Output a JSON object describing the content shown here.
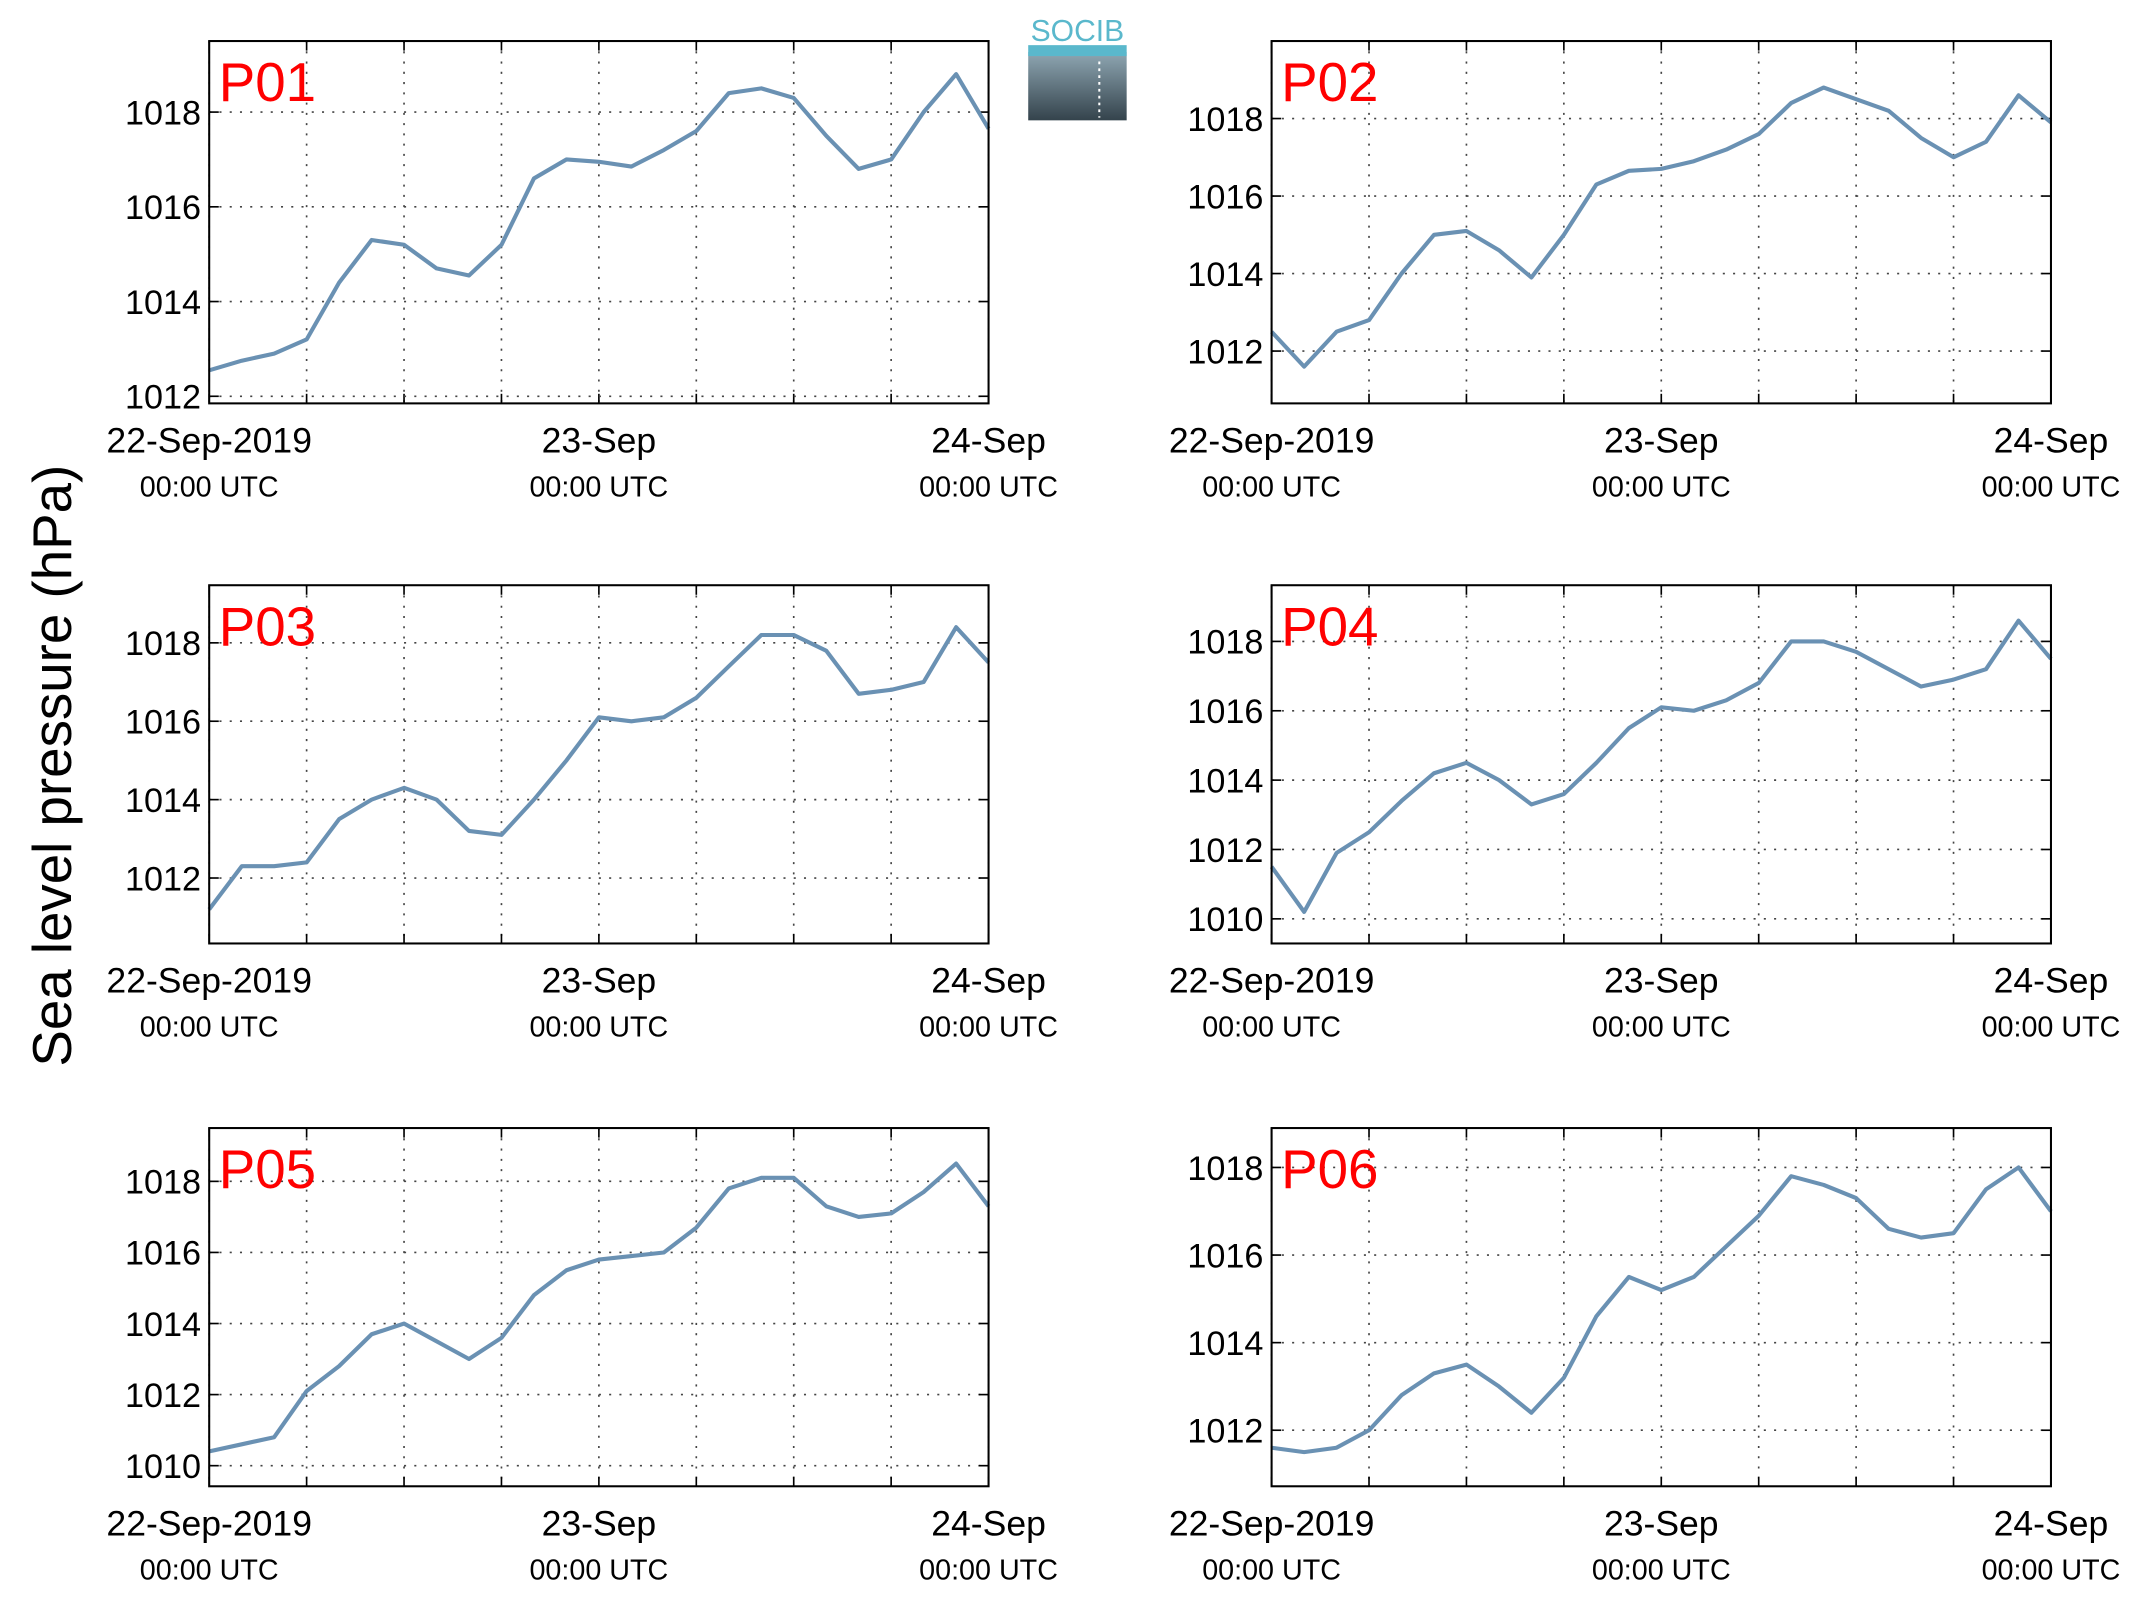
{
  "figure": {
    "ylabel": "Sea level pressure (hPa)",
    "logo": "SOCIB"
  },
  "chart_data": [
    {
      "type": "line",
      "title": "P01",
      "color": "#6a91b3",
      "grid": true,
      "x": [
        "2019-09-22T00:00",
        "2019-09-22T02:00",
        "2019-09-22T04:00",
        "2019-09-22T06:00",
        "2019-09-22T08:00",
        "2019-09-22T10:00",
        "2019-09-22T12:00",
        "2019-09-22T14:00",
        "2019-09-22T16:00",
        "2019-09-22T18:00",
        "2019-09-22T20:00",
        "2019-09-22T22:00",
        "2019-09-23T00:00",
        "2019-09-23T02:00",
        "2019-09-23T04:00",
        "2019-09-23T06:00",
        "2019-09-23T08:00",
        "2019-09-23T10:00",
        "2019-09-23T12:00",
        "2019-09-23T14:00",
        "2019-09-23T16:00",
        "2019-09-23T18:00",
        "2019-09-23T20:00",
        "2019-09-23T22:00",
        "2019-09-24T00:00"
      ],
      "values": [
        1012.55,
        1012.75,
        1012.9,
        1013.2,
        1014.4,
        1015.3,
        1015.2,
        1014.7,
        1014.55,
        1015.2,
        1016.6,
        1017.0,
        1016.95,
        1016.85,
        1017.2,
        1017.6,
        1018.4,
        1018.5,
        1018.3,
        1017.5,
        1016.8,
        1017.0,
        1018.0,
        1018.8,
        1017.65
      ],
      "xlim": [
        "2019-09-22T00:00",
        "2019-09-24T00:00"
      ],
      "xticks": [
        {
          "value": "2019-09-22T00:00",
          "label": [
            "22-Sep-2019",
            "00:00 UTC"
          ]
        },
        {
          "value": "2019-09-23T00:00",
          "label": [
            "23-Sep",
            "00:00 UTC"
          ]
        },
        {
          "value": "2019-09-24T00:00",
          "label": [
            "24-Sep",
            "00:00 UTC"
          ]
        }
      ],
      "xminor": [
        "2019-09-22T06:00",
        "2019-09-22T12:00",
        "2019-09-22T18:00",
        "2019-09-23T06:00",
        "2019-09-23T12:00",
        "2019-09-23T18:00"
      ],
      "ylim": [
        1011.85,
        1019.5
      ],
      "yticks": [
        1012,
        1014,
        1016,
        1018
      ]
    },
    {
      "type": "line",
      "title": "P02",
      "color": "#6a91b3",
      "grid": true,
      "x": [
        "2019-09-22T00:00",
        "2019-09-22T02:00",
        "2019-09-22T04:00",
        "2019-09-22T06:00",
        "2019-09-22T08:00",
        "2019-09-22T10:00",
        "2019-09-22T12:00",
        "2019-09-22T14:00",
        "2019-09-22T16:00",
        "2019-09-22T18:00",
        "2019-09-22T20:00",
        "2019-09-22T22:00",
        "2019-09-23T00:00",
        "2019-09-23T02:00",
        "2019-09-23T04:00",
        "2019-09-23T06:00",
        "2019-09-23T08:00",
        "2019-09-23T10:00",
        "2019-09-23T12:00",
        "2019-09-23T14:00",
        "2019-09-23T16:00",
        "2019-09-23T18:00",
        "2019-09-23T20:00",
        "2019-09-23T22:00",
        "2019-09-24T00:00"
      ],
      "values": [
        1012.5,
        1011.6,
        1012.5,
        1012.8,
        1014.0,
        1015.0,
        1015.1,
        1014.6,
        1013.9,
        1015.0,
        1016.3,
        1016.65,
        1016.7,
        1016.9,
        1017.2,
        1017.6,
        1018.4,
        1018.8,
        1018.5,
        1018.2,
        1017.5,
        1017.0,
        1017.4,
        1018.6,
        1017.9
      ],
      "xlim": [
        "2019-09-22T00:00",
        "2019-09-24T00:00"
      ],
      "xticks": [
        {
          "value": "2019-09-22T00:00",
          "label": [
            "22-Sep-2019",
            "00:00 UTC"
          ]
        },
        {
          "value": "2019-09-23T00:00",
          "label": [
            "23-Sep",
            "00:00 UTC"
          ]
        },
        {
          "value": "2019-09-24T00:00",
          "label": [
            "24-Sep",
            "00:00 UTC"
          ]
        }
      ],
      "xminor": [
        "2019-09-22T06:00",
        "2019-09-22T12:00",
        "2019-09-22T18:00",
        "2019-09-23T06:00",
        "2019-09-23T12:00",
        "2019-09-23T18:00"
      ],
      "ylim": [
        1010.65,
        1020.0
      ],
      "yticks": [
        1012,
        1014,
        1016,
        1018
      ]
    },
    {
      "type": "line",
      "title": "P03",
      "color": "#6a91b3",
      "grid": true,
      "x": [
        "2019-09-22T00:00",
        "2019-09-22T02:00",
        "2019-09-22T04:00",
        "2019-09-22T06:00",
        "2019-09-22T08:00",
        "2019-09-22T10:00",
        "2019-09-22T12:00",
        "2019-09-22T14:00",
        "2019-09-22T16:00",
        "2019-09-22T18:00",
        "2019-09-22T20:00",
        "2019-09-22T22:00",
        "2019-09-23T00:00",
        "2019-09-23T02:00",
        "2019-09-23T04:00",
        "2019-09-23T06:00",
        "2019-09-23T08:00",
        "2019-09-23T10:00",
        "2019-09-23T12:00",
        "2019-09-23T14:00",
        "2019-09-23T16:00",
        "2019-09-23T18:00",
        "2019-09-23T20:00",
        "2019-09-23T22:00",
        "2019-09-24T00:00"
      ],
      "values": [
        1011.2,
        1012.3,
        1012.3,
        1012.4,
        1013.5,
        1014.0,
        1014.3,
        1014.0,
        1013.2,
        1013.1,
        1014.0,
        1015.0,
        1016.1,
        1016.0,
        1016.1,
        1016.6,
        1017.4,
        1018.2,
        1018.2,
        1017.8,
        1016.7,
        1016.8,
        1017.0,
        1018.4,
        1017.5
      ],
      "xlim": [
        "2019-09-22T00:00",
        "2019-09-24T00:00"
      ],
      "xticks": [
        {
          "value": "2019-09-22T00:00",
          "label": [
            "22-Sep-2019",
            "00:00 UTC"
          ]
        },
        {
          "value": "2019-09-23T00:00",
          "label": [
            "23-Sep",
            "00:00 UTC"
          ]
        },
        {
          "value": "2019-09-24T00:00",
          "label": [
            "24-Sep",
            "00:00 UTC"
          ]
        }
      ],
      "xminor": [
        "2019-09-22T06:00",
        "2019-09-22T12:00",
        "2019-09-22T18:00",
        "2019-09-23T06:00",
        "2019-09-23T12:00",
        "2019-09-23T18:00"
      ],
      "ylim": [
        1010.33,
        1019.47
      ],
      "yticks": [
        1012,
        1014,
        1016,
        1018
      ]
    },
    {
      "type": "line",
      "title": "P04",
      "color": "#6a91b3",
      "grid": true,
      "x": [
        "2019-09-22T00:00",
        "2019-09-22T02:00",
        "2019-09-22T04:00",
        "2019-09-22T06:00",
        "2019-09-22T08:00",
        "2019-09-22T10:00",
        "2019-09-22T12:00",
        "2019-09-22T14:00",
        "2019-09-22T16:00",
        "2019-09-22T18:00",
        "2019-09-22T20:00",
        "2019-09-22T22:00",
        "2019-09-23T00:00",
        "2019-09-23T02:00",
        "2019-09-23T04:00",
        "2019-09-23T06:00",
        "2019-09-23T08:00",
        "2019-09-23T10:00",
        "2019-09-23T12:00",
        "2019-09-23T14:00",
        "2019-09-23T16:00",
        "2019-09-23T18:00",
        "2019-09-23T20:00",
        "2019-09-23T22:00",
        "2019-09-24T00:00"
      ],
      "values": [
        1011.5,
        1010.2,
        1011.9,
        1012.5,
        1013.4,
        1014.2,
        1014.5,
        1014.0,
        1013.3,
        1013.6,
        1014.5,
        1015.5,
        1016.1,
        1016.0,
        1016.3,
        1016.8,
        1018.0,
        1018.0,
        1017.7,
        1017.2,
        1016.7,
        1016.9,
        1017.2,
        1018.6,
        1017.5
      ],
      "xlim": [
        "2019-09-22T00:00",
        "2019-09-24T00:00"
      ],
      "xticks": [
        {
          "value": "2019-09-22T00:00",
          "label": [
            "22-Sep-2019",
            "00:00 UTC"
          ]
        },
        {
          "value": "2019-09-23T00:00",
          "label": [
            "23-Sep",
            "00:00 UTC"
          ]
        },
        {
          "value": "2019-09-24T00:00",
          "label": [
            "24-Sep",
            "00:00 UTC"
          ]
        }
      ],
      "xminor": [
        "2019-09-22T06:00",
        "2019-09-22T12:00",
        "2019-09-22T18:00",
        "2019-09-23T06:00",
        "2019-09-23T12:00",
        "2019-09-23T18:00"
      ],
      "ylim": [
        1009.29,
        1019.62
      ],
      "yticks": [
        1010,
        1012,
        1014,
        1016,
        1018
      ]
    },
    {
      "type": "line",
      "title": "P05",
      "color": "#6a91b3",
      "grid": true,
      "x": [
        "2019-09-22T00:00",
        "2019-09-22T02:00",
        "2019-09-22T04:00",
        "2019-09-22T06:00",
        "2019-09-22T08:00",
        "2019-09-22T10:00",
        "2019-09-22T12:00",
        "2019-09-22T14:00",
        "2019-09-22T16:00",
        "2019-09-22T18:00",
        "2019-09-22T20:00",
        "2019-09-22T22:00",
        "2019-09-23T00:00",
        "2019-09-23T02:00",
        "2019-09-23T04:00",
        "2019-09-23T06:00",
        "2019-09-23T08:00",
        "2019-09-23T10:00",
        "2019-09-23T12:00",
        "2019-09-23T14:00",
        "2019-09-23T16:00",
        "2019-09-23T18:00",
        "2019-09-23T20:00",
        "2019-09-23T22:00",
        "2019-09-24T00:00"
      ],
      "values": [
        1010.4,
        1010.6,
        1010.8,
        1012.1,
        1012.8,
        1013.7,
        1014.0,
        1013.5,
        1013.0,
        1013.6,
        1014.8,
        1015.5,
        1015.8,
        1015.9,
        1016.0,
        1016.7,
        1017.8,
        1018.1,
        1018.1,
        1017.3,
        1017.0,
        1017.1,
        1017.7,
        1018.5,
        1017.3
      ],
      "xlim": [
        "2019-09-22T00:00",
        "2019-09-24T00:00"
      ],
      "xticks": [
        {
          "value": "2019-09-22T00:00",
          "label": [
            "22-Sep-2019",
            "00:00 UTC"
          ]
        },
        {
          "value": "2019-09-23T00:00",
          "label": [
            "23-Sep",
            "00:00 UTC"
          ]
        },
        {
          "value": "2019-09-24T00:00",
          "label": [
            "24-Sep",
            "00:00 UTC"
          ]
        }
      ],
      "xminor": [
        "2019-09-22T06:00",
        "2019-09-22T12:00",
        "2019-09-22T18:00",
        "2019-09-23T06:00",
        "2019-09-23T12:00",
        "2019-09-23T18:00"
      ],
      "ylim": [
        1009.42,
        1019.5
      ],
      "yticks": [
        1010,
        1012,
        1014,
        1016,
        1018
      ]
    },
    {
      "type": "line",
      "title": "P06",
      "color": "#6a91b3",
      "grid": true,
      "x": [
        "2019-09-22T00:00",
        "2019-09-22T02:00",
        "2019-09-22T04:00",
        "2019-09-22T06:00",
        "2019-09-22T08:00",
        "2019-09-22T10:00",
        "2019-09-22T12:00",
        "2019-09-22T14:00",
        "2019-09-22T16:00",
        "2019-09-22T18:00",
        "2019-09-22T20:00",
        "2019-09-22T22:00",
        "2019-09-23T00:00",
        "2019-09-23T02:00",
        "2019-09-23T04:00",
        "2019-09-23T06:00",
        "2019-09-23T08:00",
        "2019-09-23T10:00",
        "2019-09-23T12:00",
        "2019-09-23T14:00",
        "2019-09-23T16:00",
        "2019-09-23T18:00",
        "2019-09-23T20:00",
        "2019-09-23T22:00",
        "2019-09-24T00:00"
      ],
      "values": [
        1011.6,
        1011.5,
        1011.6,
        1012.0,
        1012.8,
        1013.3,
        1013.5,
        1013.0,
        1012.4,
        1013.2,
        1014.6,
        1015.5,
        1015.2,
        1015.5,
        1016.2,
        1016.9,
        1017.8,
        1017.6,
        1017.3,
        1016.6,
        1016.4,
        1016.5,
        1017.5,
        1018.0,
        1017.0
      ],
      "xlim": [
        "2019-09-22T00:00",
        "2019-09-24T00:00"
      ],
      "xticks": [
        {
          "value": "2019-09-22T00:00",
          "label": [
            "22-Sep-2019",
            "00:00 UTC"
          ]
        },
        {
          "value": "2019-09-23T00:00",
          "label": [
            "23-Sep",
            "00:00 UTC"
          ]
        },
        {
          "value": "2019-09-24T00:00",
          "label": [
            "24-Sep",
            "00:00 UTC"
          ]
        }
      ],
      "xminor": [
        "2019-09-22T06:00",
        "2019-09-22T12:00",
        "2019-09-22T18:00",
        "2019-09-23T06:00",
        "2019-09-23T12:00",
        "2019-09-23T18:00"
      ],
      "ylim": [
        1010.72,
        1018.9
      ],
      "yticks": [
        1012,
        1014,
        1016,
        1018
      ]
    }
  ]
}
